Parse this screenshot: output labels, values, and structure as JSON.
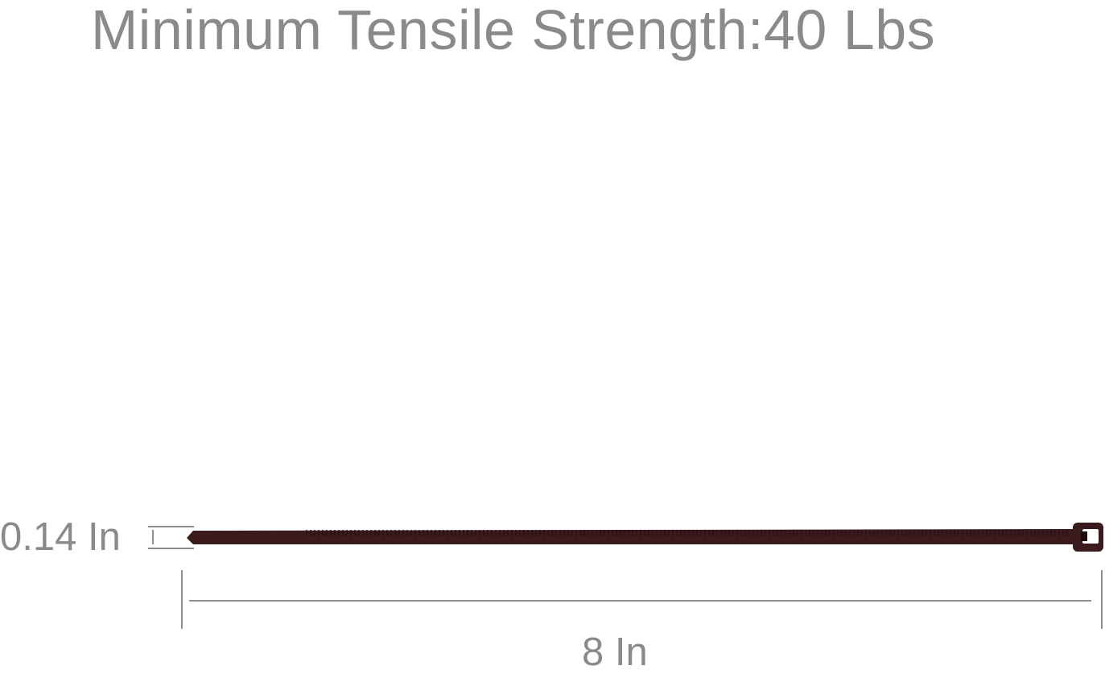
{
  "title": "Minimum Tensile Strength:40 Lbs",
  "dimensions": {
    "width_label": "0.14 In",
    "length_label": "8 In"
  },
  "colors": {
    "text": "#8a8a8a",
    "dimension_lines": "#8f8f8f",
    "cable_tie": "#3a1a1c"
  }
}
